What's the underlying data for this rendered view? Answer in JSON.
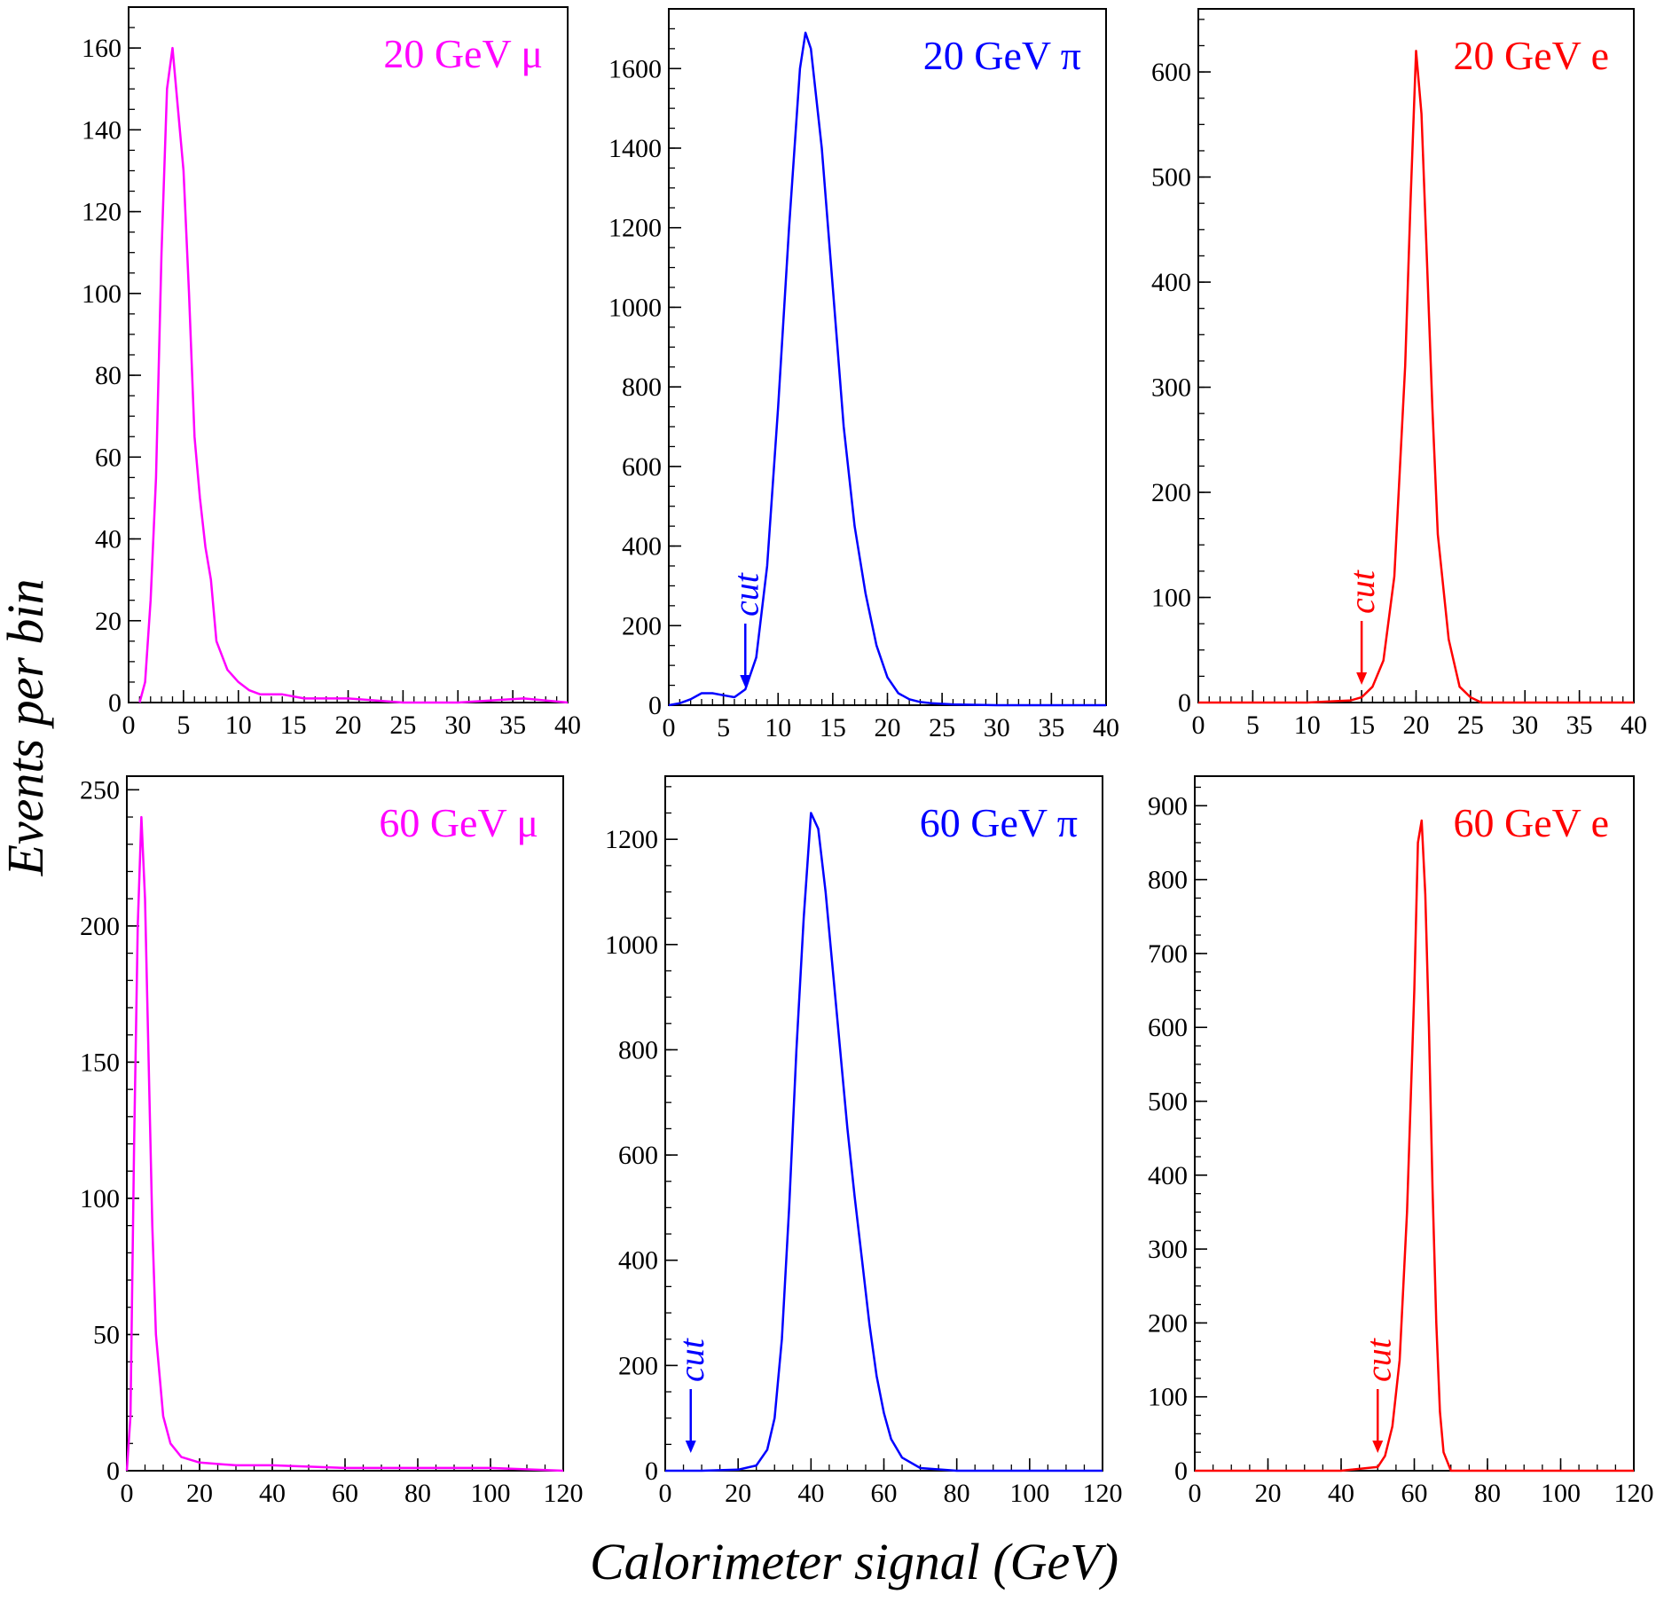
{
  "figure": {
    "ylabel": "Events per bin",
    "xlabel": "Calorimeter signal (GeV)"
  },
  "colors": {
    "muon": "#ff00ff",
    "pion": "#0000ff",
    "electron": "#ff0000"
  },
  "chart_data": [
    {
      "type": "line",
      "label": "20 GeV μ",
      "particle": "muon",
      "xlim": [
        0,
        40
      ],
      "ylim": [
        0,
        170
      ],
      "xticks": [
        0,
        5,
        10,
        15,
        20,
        25,
        30,
        35,
        40
      ],
      "xminor": 1,
      "yticks": [
        0,
        20,
        40,
        60,
        80,
        100,
        120,
        140,
        160
      ],
      "yminor": 5,
      "x": [
        1,
        1.5,
        2,
        2.5,
        3,
        3.5,
        4,
        4.5,
        5,
        5.5,
        6,
        6.5,
        7,
        7.5,
        8,
        9,
        10,
        11,
        12,
        14,
        16,
        20,
        25,
        30,
        36,
        40
      ],
      "y": [
        0,
        5,
        25,
        55,
        110,
        150,
        160,
        145,
        130,
        100,
        65,
        50,
        38,
        30,
        15,
        8,
        5,
        3,
        2,
        2,
        1,
        1,
        0,
        0,
        1,
        0
      ]
    },
    {
      "type": "line",
      "label": "20 GeV π",
      "particle": "pion",
      "cut": 7,
      "cut_label": "cut",
      "xlim": [
        0,
        40
      ],
      "ylim": [
        0,
        1750
      ],
      "xticks": [
        0,
        5,
        10,
        15,
        20,
        25,
        30,
        35,
        40
      ],
      "xminor": 1,
      "yticks": [
        0,
        200,
        400,
        600,
        800,
        1000,
        1200,
        1400,
        1600
      ],
      "yminor": 50,
      "x": [
        0,
        1,
        2,
        3,
        4,
        5,
        6,
        7,
        8,
        9,
        10,
        11,
        12,
        12.5,
        13,
        14,
        15,
        16,
        17,
        18,
        19,
        20,
        21,
        22,
        23,
        24,
        26,
        30,
        40
      ],
      "y": [
        0,
        5,
        15,
        30,
        30,
        25,
        20,
        40,
        120,
        350,
        750,
        1200,
        1600,
        1690,
        1650,
        1400,
        1050,
        700,
        450,
        280,
        150,
        70,
        30,
        15,
        8,
        5,
        2,
        0,
        0
      ]
    },
    {
      "type": "line",
      "label": "20 GeV e",
      "particle": "electron",
      "cut": 15,
      "cut_label": "cut",
      "xlim": [
        0,
        40
      ],
      "ylim": [
        0,
        660
      ],
      "xticks": [
        0,
        5,
        10,
        15,
        20,
        25,
        30,
        35,
        40
      ],
      "xminor": 1,
      "yticks": [
        0,
        100,
        200,
        300,
        400,
        500,
        600
      ],
      "yminor": 25,
      "x": [
        0,
        10,
        14,
        15,
        16,
        17,
        18,
        19,
        19.5,
        20,
        20.5,
        21,
        21.5,
        22,
        23,
        24,
        25,
        26,
        40
      ],
      "y": [
        0,
        0,
        2,
        5,
        15,
        40,
        120,
        320,
        480,
        620,
        560,
        420,
        280,
        160,
        60,
        15,
        5,
        0,
        0
      ]
    },
    {
      "type": "line",
      "label": "60 GeV μ",
      "particle": "muon",
      "xlim": [
        0,
        120
      ],
      "ylim": [
        0,
        255
      ],
      "xticks": [
        0,
        20,
        40,
        60,
        80,
        100,
        120
      ],
      "xminor": 5,
      "yticks": [
        0,
        50,
        100,
        150,
        200,
        250
      ],
      "yminor": 10,
      "x": [
        0,
        1,
        2,
        3,
        4,
        5,
        6,
        7,
        8,
        10,
        12,
        15,
        20,
        30,
        40,
        60,
        80,
        100,
        120
      ],
      "y": [
        0,
        20,
        120,
        200,
        240,
        210,
        150,
        90,
        50,
        20,
        10,
        5,
        3,
        2,
        2,
        1,
        1,
        1,
        0
      ]
    },
    {
      "type": "line",
      "label": "60 GeV π",
      "particle": "pion",
      "cut": 7,
      "cut_label": "cut",
      "xlim": [
        0,
        120
      ],
      "ylim": [
        0,
        1320
      ],
      "xticks": [
        0,
        20,
        40,
        60,
        80,
        100,
        120
      ],
      "xminor": 5,
      "yticks": [
        0,
        200,
        400,
        600,
        800,
        1000,
        1200
      ],
      "yminor": 50,
      "x": [
        0,
        10,
        20,
        25,
        28,
        30,
        32,
        34,
        36,
        38,
        40,
        42,
        44,
        46,
        48,
        50,
        52,
        54,
        56,
        58,
        60,
        62,
        65,
        70,
        80,
        120
      ],
      "y": [
        0,
        0,
        2,
        10,
        40,
        100,
        250,
        500,
        800,
        1050,
        1250,
        1220,
        1100,
        950,
        800,
        650,
        520,
        400,
        280,
        180,
        110,
        60,
        25,
        5,
        0,
        0
      ]
    },
    {
      "type": "line",
      "label": "60 GeV e",
      "particle": "electron",
      "cut": 50,
      "cut_label": "cut",
      "xlim": [
        0,
        120
      ],
      "ylim": [
        0,
        940
      ],
      "xticks": [
        0,
        20,
        40,
        60,
        80,
        100,
        120
      ],
      "xminor": 5,
      "yticks": [
        0,
        100,
        200,
        300,
        400,
        500,
        600,
        700,
        800,
        900
      ],
      "yminor": 25,
      "x": [
        0,
        40,
        50,
        52,
        54,
        56,
        58,
        60,
        61,
        62,
        63,
        64,
        65,
        66,
        67,
        68,
        70,
        120
      ],
      "y": [
        0,
        0,
        5,
        20,
        60,
        150,
        350,
        650,
        850,
        880,
        780,
        600,
        380,
        200,
        80,
        25,
        0,
        0
      ]
    }
  ]
}
